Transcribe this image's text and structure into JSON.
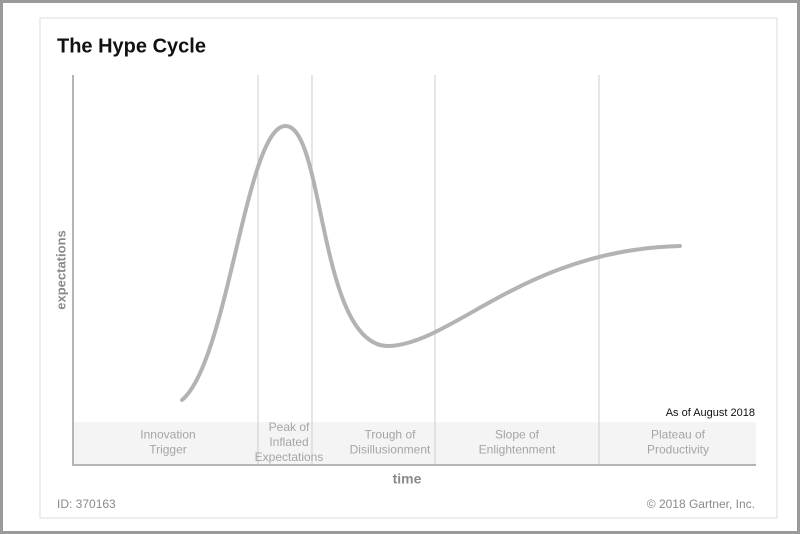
{
  "title": "The Hype Cycle",
  "y_axis_label": "expectations",
  "x_axis_label": "time",
  "note": "As of August 2018",
  "phases": [
    {
      "lines": [
        "Innovation",
        "Trigger"
      ]
    },
    {
      "lines": [
        "Peak of",
        "Inflated",
        "Expectations"
      ]
    },
    {
      "lines": [
        "Trough of",
        "Disillusionment"
      ]
    },
    {
      "lines": [
        "Slope of",
        "Enlightenment"
      ]
    },
    {
      "lines": [
        "Plateau of",
        "Productivity"
      ]
    }
  ],
  "footer": {
    "id": "ID: 370163",
    "copyright": "© 2018 Gartner, Inc."
  }
}
